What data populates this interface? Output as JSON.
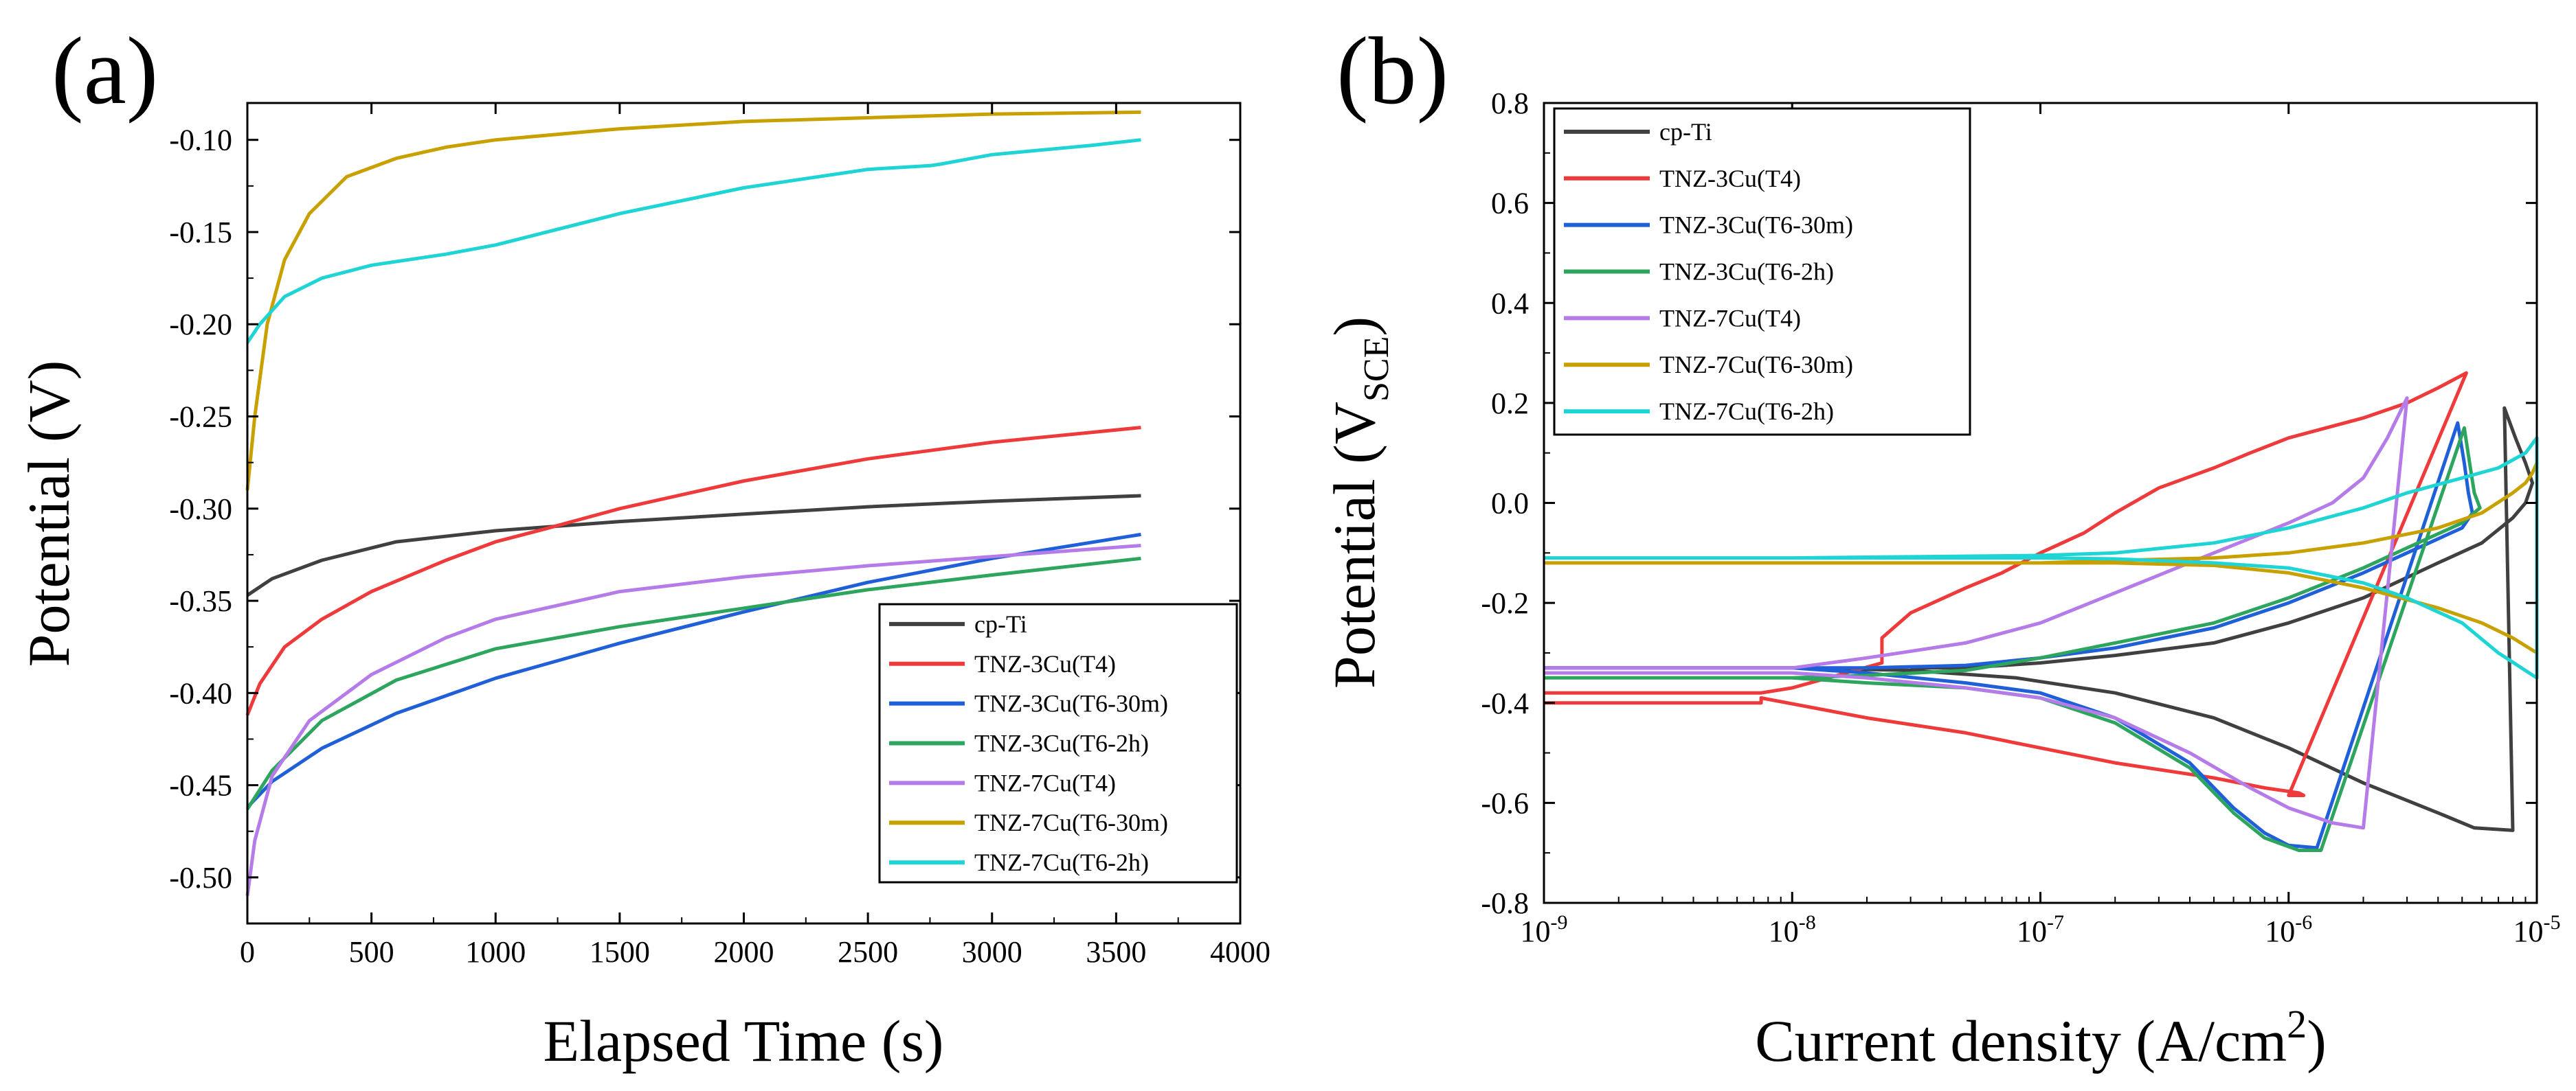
{
  "colors": {
    "cp-Ti": "#404040",
    "TNZ-3Cu(T4)": "#ee3a3a",
    "TNZ-3Cu(T6-30m)": "#1f5fd8",
    "TNZ-3Cu(T6-2h)": "#2ea55e",
    "TNZ-7Cu(T4)": "#b57be8",
    "TNZ-7Cu(T6-30m)": "#c8a000",
    "TNZ-7Cu(T6-2h)": "#1ed4d4"
  },
  "chart_data": [
    {
      "id": "a",
      "panel_label": "(a)",
      "type": "line",
      "xlabel": "Elapsed Time (s)",
      "ylabel": "Potential (V)",
      "xlim": [
        0,
        4000
      ],
      "ylim": [
        -0.525,
        -0.08
      ],
      "xticks": [
        "0",
        "500",
        "1000",
        "1500",
        "2000",
        "2500",
        "3000",
        "3500",
        "4000"
      ],
      "xtick_values": [
        0,
        500,
        1000,
        1500,
        2000,
        2500,
        3000,
        3500,
        4000
      ],
      "yticks": [
        "-0.50",
        "-0.45",
        "-0.40",
        "-0.35",
        "-0.30",
        "-0.25",
        "-0.20",
        "-0.15",
        "-0.10"
      ],
      "ytick_values": [
        -0.5,
        -0.45,
        -0.4,
        -0.35,
        -0.3,
        -0.25,
        -0.2,
        -0.15,
        -0.1
      ],
      "legend_position": "bottom-right",
      "series": [
        {
          "name": "cp-Ti",
          "x": [
            0,
            100,
            300,
            600,
            1000,
            1500,
            2000,
            2500,
            3000,
            3600
          ],
          "y": [
            -0.347,
            -0.338,
            -0.328,
            -0.318,
            -0.312,
            -0.307,
            -0.303,
            -0.299,
            -0.296,
            -0.293
          ]
        },
        {
          "name": "TNZ-3Cu(T4)",
          "x": [
            0,
            50,
            150,
            300,
            500,
            800,
            1000,
            1200,
            1500,
            2000,
            2500,
            3000,
            3600
          ],
          "y": [
            -0.412,
            -0.395,
            -0.375,
            -0.36,
            -0.345,
            -0.328,
            -0.318,
            -0.311,
            -0.3,
            -0.285,
            -0.273,
            -0.264,
            -0.256
          ]
        },
        {
          "name": "TNZ-3Cu(T6-30m)",
          "x": [
            0,
            100,
            300,
            600,
            1000,
            1500,
            2000,
            2500,
            3000,
            3600
          ],
          "y": [
            -0.462,
            -0.448,
            -0.43,
            -0.411,
            -0.392,
            -0.373,
            -0.356,
            -0.34,
            -0.327,
            -0.314
          ]
        },
        {
          "name": "TNZ-3Cu(T6-2h)",
          "x": [
            0,
            100,
            300,
            600,
            1000,
            1500,
            2000,
            2500,
            3000,
            3600
          ],
          "y": [
            -0.463,
            -0.442,
            -0.415,
            -0.393,
            -0.376,
            -0.364,
            -0.354,
            -0.344,
            -0.336,
            -0.327
          ]
        },
        {
          "name": "TNZ-7Cu(T4)",
          "x": [
            0,
            30,
            100,
            250,
            500,
            800,
            1000,
            1500,
            2000,
            2500,
            3000,
            3600
          ],
          "y": [
            -0.51,
            -0.48,
            -0.445,
            -0.415,
            -0.39,
            -0.37,
            -0.36,
            -0.345,
            -0.337,
            -0.331,
            -0.326,
            -0.32
          ]
        },
        {
          "name": "TNZ-7Cu(T6-30m)",
          "x": [
            0,
            30,
            80,
            150,
            250,
            400,
            600,
            800,
            1000,
            1500,
            2000,
            2500,
            3000,
            3600
          ],
          "y": [
            -0.29,
            -0.25,
            -0.2,
            -0.165,
            -0.14,
            -0.12,
            -0.11,
            -0.104,
            -0.1,
            -0.094,
            -0.09,
            -0.088,
            -0.086,
            -0.085
          ]
        },
        {
          "name": "TNZ-7Cu(T6-2h)",
          "x": [
            0,
            50,
            150,
            300,
            500,
            800,
            1000,
            1500,
            2000,
            2500,
            2750,
            2800,
            3000,
            3400,
            3600
          ],
          "y": [
            -0.21,
            -0.2,
            -0.185,
            -0.175,
            -0.168,
            -0.162,
            -0.157,
            -0.14,
            -0.126,
            -0.116,
            -0.114,
            -0.113,
            -0.108,
            -0.103,
            -0.1
          ]
        }
      ]
    },
    {
      "id": "b",
      "panel_label": "(b)",
      "type": "line",
      "xscale": "log",
      "xlabel": "Current density (A/cm2)",
      "ylabel": "Potential (VSCE)",
      "xlim": [
        1e-09,
        1e-05
      ],
      "ylim": [
        -0.8,
        0.8
      ],
      "xticks": [
        "10-9",
        "10-8",
        "10-7",
        "10-6",
        "10-5"
      ],
      "xtick_values": [
        1e-09,
        1e-08,
        1e-07,
        1e-06,
        1e-05
      ],
      "yticks": [
        "-0.8",
        "-0.6",
        "-0.4",
        "-0.2",
        "0.0",
        "0.2",
        "0.4",
        "0.6",
        "0.8"
      ],
      "ytick_values": [
        -0.8,
        -0.6,
        -0.4,
        -0.2,
        0.0,
        0.2,
        0.4,
        0.6,
        0.8
      ],
      "legend_position": "top-left",
      "series": [
        {
          "name": "cp-Ti",
          "x": [
            1e-09,
            1e-08,
            3e-08,
            8e-08,
            2e-07,
            5e-07,
            1e-06,
            2e-06,
            4e-06,
            5.6e-06,
            8e-06,
            8e-06,
            7.4e-06,
            8.2e-06,
            9e-06,
            9.6e-06,
            9e-06,
            8e-06,
            6e-06,
            4e-06,
            2e-06,
            1e-06,
            5e-07,
            2e-07,
            1e-07,
            5e-08,
            3e-08
          ],
          "y": [
            -0.33,
            -0.33,
            -0.335,
            -0.35,
            -0.38,
            -0.43,
            -0.49,
            -0.56,
            -0.62,
            -0.65,
            -0.655,
            -0.655,
            0.19,
            0.13,
            0.08,
            0.04,
            0.0,
            -0.03,
            -0.08,
            -0.12,
            -0.19,
            -0.24,
            -0.28,
            -0.305,
            -0.32,
            -0.33,
            -0.33
          ]
        },
        {
          "name": "TNZ-3Cu(T4)",
          "x": [
            1e-09,
            7.5e-09,
            7.5e-09,
            2e-08,
            5e-08,
            1e-07,
            2e-07,
            5e-07,
            8e-07,
            1.1e-06,
            1.15e-06,
            1e-06,
            5.2e-06,
            4e-06,
            3e-06,
            2e-06,
            1e-06,
            7e-07,
            5e-07,
            3e-07,
            2e-07,
            1.5e-07,
            1e-07,
            7e-08,
            5e-08,
            3e-08,
            2.3e-08,
            2.3e-08,
            1e-08,
            7.5e-09,
            1e-09
          ],
          "y": [
            -0.4,
            -0.4,
            -0.39,
            -0.43,
            -0.46,
            -0.49,
            -0.52,
            -0.55,
            -0.57,
            -0.58,
            -0.585,
            -0.585,
            0.26,
            0.23,
            0.2,
            0.17,
            0.13,
            0.1,
            0.07,
            0.03,
            -0.02,
            -0.06,
            -0.1,
            -0.14,
            -0.17,
            -0.22,
            -0.27,
            -0.32,
            -0.37,
            -0.38,
            -0.38
          ]
        },
        {
          "name": "TNZ-3Cu(T6-30m)",
          "x": [
            1e-09,
            1e-08,
            2e-08,
            5e-08,
            1e-07,
            2e-07,
            4e-07,
            6e-07,
            8e-07,
            1e-06,
            1.3e-06,
            1.3e-06,
            4.8e-06,
            5.1e-06,
            5.3e-06,
            5.5e-06,
            5e-06,
            3e-06,
            2e-06,
            1e-06,
            5e-07,
            2e-07,
            1e-07,
            5e-08,
            2e-08,
            1e-08,
            1e-09
          ],
          "y": [
            -0.33,
            -0.33,
            -0.34,
            -0.36,
            -0.38,
            -0.43,
            -0.52,
            -0.61,
            -0.66,
            -0.685,
            -0.69,
            -0.69,
            0.16,
            0.08,
            0.02,
            -0.02,
            -0.05,
            -0.1,
            -0.14,
            -0.2,
            -0.25,
            -0.29,
            -0.31,
            -0.325,
            -0.33,
            -0.33,
            -0.33
          ]
        },
        {
          "name": "TNZ-3Cu(T6-2h)",
          "x": [
            1e-09,
            1e-08,
            2e-08,
            5e-08,
            1e-07,
            2e-07,
            4e-07,
            6e-07,
            8e-07,
            1.1e-06,
            1.35e-06,
            1.35e-06,
            5.1e-06,
            5.4e-06,
            5.6e-06,
            5.9e-06,
            5e-06,
            3e-06,
            2e-06,
            1e-06,
            5e-07,
            2e-07,
            1e-07,
            5e-08,
            2e-08,
            1e-08,
            1e-09
          ],
          "y": [
            -0.35,
            -0.35,
            -0.36,
            -0.37,
            -0.39,
            -0.44,
            -0.53,
            -0.62,
            -0.67,
            -0.695,
            -0.695,
            -0.695,
            0.15,
            0.07,
            0.02,
            -0.01,
            -0.04,
            -0.09,
            -0.13,
            -0.19,
            -0.24,
            -0.28,
            -0.31,
            -0.335,
            -0.345,
            -0.35,
            -0.35
          ]
        },
        {
          "name": "TNZ-7Cu(T4)",
          "x": [
            1e-09,
            1e-08,
            2e-08,
            5e-08,
            1e-07,
            2e-07,
            4e-07,
            7e-07,
            1e-06,
            1.5e-06,
            2e-06,
            2e-06,
            3e-06,
            2.5e-06,
            2e-06,
            1.5e-06,
            1e-06,
            5e-07,
            2e-07,
            1e-07,
            5e-08,
            2e-08,
            1e-08,
            1e-09
          ],
          "y": [
            -0.34,
            -0.34,
            -0.35,
            -0.37,
            -0.39,
            -0.43,
            -0.5,
            -0.57,
            -0.61,
            -0.64,
            -0.65,
            -0.65,
            0.21,
            0.13,
            0.05,
            0.0,
            -0.04,
            -0.1,
            -0.18,
            -0.24,
            -0.28,
            -0.31,
            -0.33,
            -0.33
          ]
        },
        {
          "name": "TNZ-7Cu(T6-30m)",
          "x": [
            1e-09,
            1e-08,
            5e-08,
            1e-07,
            2e-07,
            5e-07,
            1e-06,
            2e-06,
            4e-06,
            6e-06,
            8e-06,
            1e-05,
            1e-05,
            9.6e-06,
            9e-06,
            8e-06,
            6e-06,
            4e-06,
            2e-06,
            1e-06,
            5e-07,
            2e-07,
            1e-07,
            1e-08,
            1e-09
          ],
          "y": [
            -0.12,
            -0.12,
            -0.12,
            -0.12,
            -0.12,
            -0.125,
            -0.14,
            -0.17,
            -0.21,
            -0.24,
            -0.27,
            -0.3,
            0.08,
            0.06,
            0.04,
            0.02,
            -0.02,
            -0.05,
            -0.08,
            -0.1,
            -0.11,
            -0.115,
            -0.12,
            -0.12,
            -0.12
          ]
        },
        {
          "name": "TNZ-7Cu(T6-2h)",
          "x": [
            1e-09,
            1e-08,
            5e-08,
            1e-07,
            2e-07,
            5e-07,
            1e-06,
            2e-06,
            3e-06,
            5e-06,
            7e-06,
            1e-05,
            1e-05,
            9e-06,
            7e-06,
            5e-06,
            3e-06,
            2e-06,
            1e-06,
            5e-07,
            2e-07,
            1e-07,
            1e-08,
            1e-09
          ],
          "y": [
            -0.11,
            -0.11,
            -0.11,
            -0.11,
            -0.112,
            -0.12,
            -0.13,
            -0.16,
            -0.19,
            -0.24,
            -0.3,
            -0.35,
            0.13,
            0.1,
            0.07,
            0.05,
            0.02,
            -0.01,
            -0.05,
            -0.08,
            -0.1,
            -0.105,
            -0.11,
            -0.11
          ]
        }
      ]
    }
  ]
}
